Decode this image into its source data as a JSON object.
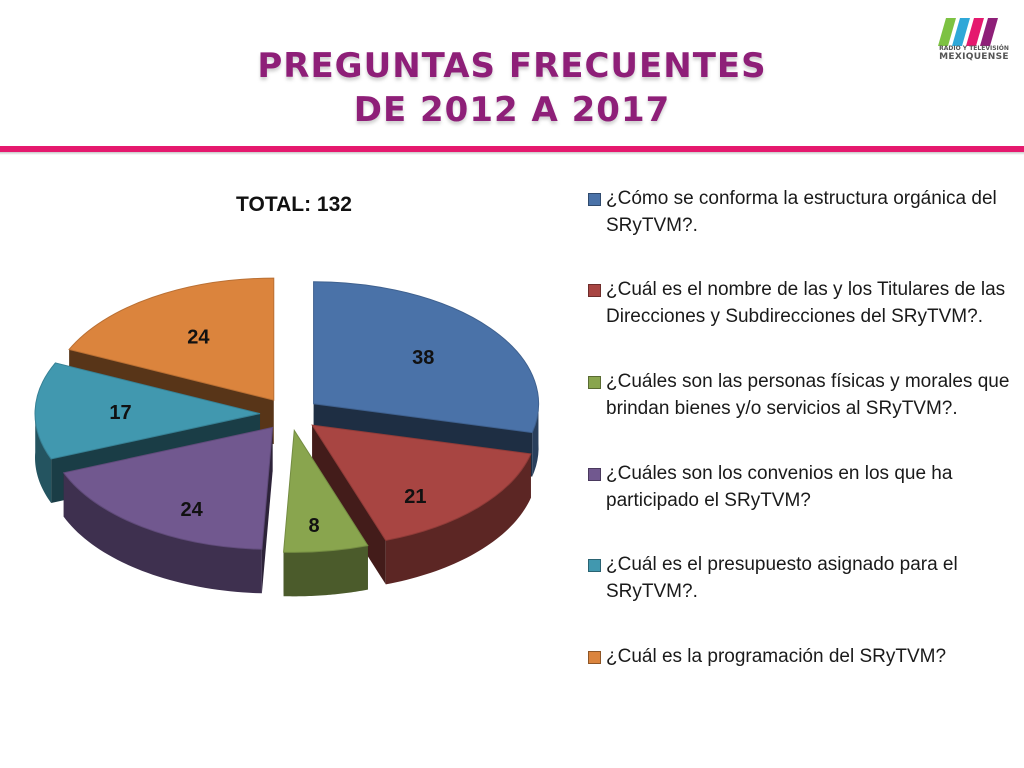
{
  "header": {
    "title_line1": "PREGUNTAS FRECUENTES",
    "title_line2": "DE 2012 A 2017",
    "logo_line1": "RADIO Y TELEVISIÓN",
    "logo_line2": "MEXIQUENSE",
    "logo_icon": "tvm-logo-icon",
    "accent_color": "#e5196e",
    "title_color": "#8e1f78"
  },
  "chart_data": {
    "type": "pie",
    "title": "TOTAL: 132",
    "legend_position": "right",
    "exploded": true,
    "style": "3d",
    "slices": [
      {
        "label": "¿Cómo se conforma la estructura orgánica del SRyTVM?.",
        "value": 38,
        "color": "#4a72a8"
      },
      {
        "label": "¿Cuál es el nombre de las y los Titulares de las Direcciones y Subdirecciones  del SRyTVM?.",
        "value": 21,
        "color": "#a84542"
      },
      {
        "label": "¿Cuáles son las personas físicas y morales que  brindan bienes y/o servicios al SRyTVM?.",
        "value": 8,
        "color": "#89a54e"
      },
      {
        "label": "¿Cuáles son los convenios  en los que ha participado el SRyTVM?",
        "value": 24,
        "color": "#71588f"
      },
      {
        "label": "¿Cuál es el presupuesto asignado para el SRyTVM?.",
        "value": 17,
        "color": "#4198af"
      },
      {
        "label": "¿Cuál es la programación del SRyTVM?",
        "value": 24,
        "color": "#db843d"
      }
    ]
  }
}
